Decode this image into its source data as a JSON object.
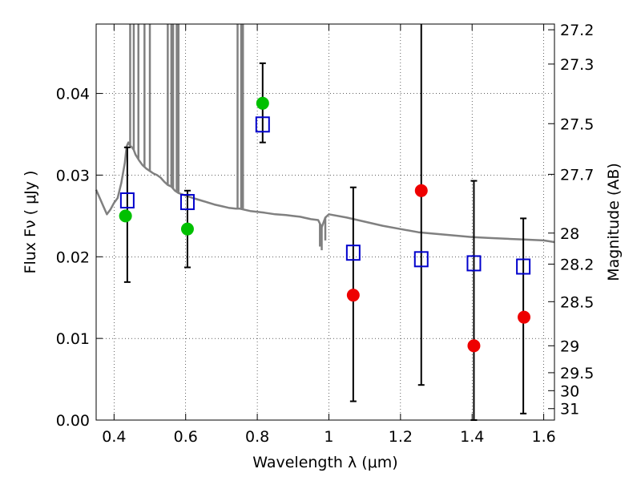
{
  "chart_data": {
    "type": "scatter",
    "xlabel": "Wavelength  λ (μm)",
    "ylabel": "Flux  Fν  ( μJy )",
    "ylabel_right": "Magnitude (AB)",
    "xlim": [
      0.35,
      1.63
    ],
    "ylim": [
      0.0,
      0.0485
    ],
    "grid": true,
    "x_ticks": [
      0.4,
      0.6,
      0.8,
      1.0,
      1.2,
      1.4,
      1.6
    ],
    "x_tick_labels": [
      "0.4",
      "0.6",
      "0.8",
      "1",
      "1.2",
      "1.4",
      "1.6"
    ],
    "y_ticks": [
      0.0,
      0.01,
      0.02,
      0.03,
      0.04
    ],
    "y_tick_labels": [
      "0.00",
      "0.01",
      "0.02",
      "0.03",
      "0.04"
    ],
    "right_ticks": [
      {
        "label": "27.2",
        "flux": 0.0478
      },
      {
        "label": "27.3",
        "flux": 0.0436
      },
      {
        "label": "27.5",
        "flux": 0.0363
      },
      {
        "label": "27.7",
        "flux": 0.0301
      },
      {
        "label": "28",
        "flux": 0.0229
      },
      {
        "label": "28.2",
        "flux": 0.0191
      },
      {
        "label": "28.5",
        "flux": 0.0145
      },
      {
        "label": "29",
        "flux": 0.0091
      },
      {
        "label": "29.5",
        "flux": 0.0058
      },
      {
        "label": "30",
        "flux": 0.0036
      },
      {
        "label": "31",
        "flux": 0.0014
      }
    ],
    "colors": {
      "model": "#808080",
      "squares": "#0000cc",
      "green": "#00c000",
      "red": "#ee0000",
      "errorbar": "#000000"
    },
    "series": [
      {
        "kind": "model-spectrum",
        "x": [
          0.35,
          0.36,
          0.37,
          0.38,
          0.39,
          0.4,
          0.41,
          0.42,
          0.43,
          0.435,
          0.44,
          0.445,
          0.45,
          0.455,
          0.46,
          0.47,
          0.48,
          0.49,
          0.5,
          0.51,
          0.52,
          0.53,
          0.54,
          0.55,
          0.56,
          0.57,
          0.58,
          0.6,
          0.62,
          0.65,
          0.68,
          0.7,
          0.72,
          0.74,
          0.75,
          0.76,
          0.78,
          0.8,
          0.82,
          0.85,
          0.88,
          0.9,
          0.92,
          0.95,
          0.97,
          0.98,
          0.99,
          1.0,
          1.05,
          1.1,
          1.15,
          1.2,
          1.25,
          1.3,
          1.35,
          1.4,
          1.45,
          1.5,
          1.55,
          1.6,
          1.63
        ],
        "y": [
          0.0282,
          0.0272,
          0.0262,
          0.0252,
          0.0258,
          0.0266,
          0.0272,
          0.029,
          0.0315,
          0.0335,
          0.034,
          0.0336,
          0.0334,
          0.0331,
          0.0325,
          0.0318,
          0.0312,
          0.0308,
          0.0305,
          0.0302,
          0.03,
          0.0297,
          0.0292,
          0.0288,
          0.0286,
          0.0281,
          0.0278,
          0.0275,
          0.0272,
          0.0268,
          0.0264,
          0.0262,
          0.026,
          0.0259,
          0.0259,
          0.0258,
          0.0256,
          0.0255,
          0.0254,
          0.0252,
          0.0251,
          0.025,
          0.0249,
          0.0246,
          0.0245,
          0.0236,
          0.0248,
          0.0252,
          0.0248,
          0.0243,
          0.0238,
          0.0234,
          0.023,
          0.0228,
          0.0226,
          0.0224,
          0.0223,
          0.0222,
          0.0221,
          0.022,
          0.0218
        ],
        "spikes": [
          0.445,
          0.455,
          0.468,
          0.485,
          0.5,
          0.55,
          0.56,
          0.565,
          0.575,
          0.58,
          0.745,
          0.755,
          0.76
        ],
        "dips": [
          0.975,
          0.98,
          0.99
        ]
      },
      {
        "kind": "open-squares-with-errorbars",
        "x": [
          0.437,
          0.605,
          0.815,
          1.068,
          1.258,
          1.405,
          1.543
        ],
        "y": [
          0.0269,
          0.0267,
          0.0362,
          0.0205,
          0.0197,
          0.0192,
          0.0188
        ],
        "err_lo": [
          0.01,
          0.008,
          0.0022,
          0.0182,
          0.0154,
          0.0198,
          0.018
        ],
        "err_hi": [
          0.0065,
          0.0014,
          0.0075,
          0.008,
          0.029,
          0.0101,
          0.0059
        ]
      },
      {
        "kind": "filled-circles",
        "color": "green",
        "x": [
          0.432,
          0.605,
          0.815
        ],
        "y": [
          0.025,
          0.0234,
          0.0388
        ]
      },
      {
        "kind": "filled-circles",
        "color": "red",
        "x": [
          1.068,
          1.258,
          1.405,
          1.545
        ],
        "y": [
          0.0153,
          0.0281,
          0.0091,
          0.0126
        ]
      }
    ]
  }
}
